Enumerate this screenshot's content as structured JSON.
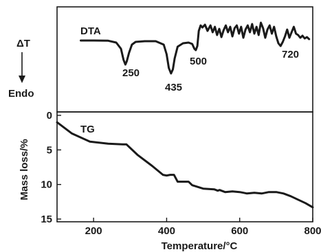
{
  "chart_data": [
    {
      "type": "line",
      "panel": "DTA",
      "curve_label": "DTA",
      "y_indicator": {
        "symbol": "ΔT",
        "direction_label": "Endo"
      },
      "peak_labels": [
        {
          "text": "250",
          "x": 290
        },
        {
          "text": "435",
          "x": 415
        },
        {
          "text": "500",
          "x": 480
        },
        {
          "text": "720",
          "x": 720
        }
      ],
      "series": [
        {
          "x": [
            165,
            200,
            240,
            262,
            275,
            282,
            287,
            291,
            297,
            305,
            315,
            340,
            370,
            392,
            400,
            406,
            412,
            417,
            422,
            430,
            445,
            460,
            470,
            476,
            480,
            484,
            488,
            493,
            498,
            505,
            512,
            520,
            526,
            532,
            538,
            544,
            550,
            556,
            562,
            568,
            574,
            580,
            586,
            592,
            598,
            604,
            610,
            616,
            622,
            628,
            634,
            640,
            646,
            652,
            658,
            664,
            670,
            676,
            682,
            688,
            694,
            700,
            706,
            712,
            718,
            724,
            730,
            736,
            742,
            748,
            754,
            760,
            766,
            772,
            778,
            784,
            790
          ],
          "y": [
            0,
            0,
            -0.3,
            -3,
            -12,
            -28,
            -35,
            -30,
            -18,
            -6,
            -2,
            -1,
            -1,
            -6,
            -20,
            -40,
            -48,
            -42,
            -26,
            -9,
            -4,
            -3,
            -5,
            -12,
            -14,
            -8,
            14,
            22,
            19,
            23,
            14,
            22,
            12,
            20,
            8,
            17,
            5,
            15,
            22,
            12,
            20,
            6,
            18,
            22,
            10,
            20,
            4,
            16,
            22,
            12,
            24,
            10,
            20,
            8,
            26,
            18,
            4,
            16,
            22,
            10,
            20,
            6,
            -4,
            -8,
            -2,
            6,
            16,
            4,
            12,
            20,
            10,
            8,
            4,
            7,
            3,
            5,
            2
          ]
        }
      ]
    },
    {
      "type": "line",
      "panel": "TG",
      "curve_label": "TG",
      "xlabel": "Temperature/°C",
      "ylabel": "Mass loss/%",
      "xlim": [
        100,
        800
      ],
      "ylim": [
        0,
        15
      ],
      "y_inverted": true,
      "x_ticks": [
        "200",
        "400",
        "600",
        "800"
      ],
      "y_ticks": [
        "0",
        "5",
        "10",
        "15"
      ],
      "series": [
        {
          "x": [
            100,
            140,
            190,
            240,
            280,
            290,
            320,
            360,
            390,
            400,
            410,
            420,
            430,
            440,
            450,
            460,
            470,
            500,
            530,
            540,
            545,
            550,
            560,
            580,
            600,
            610,
            620,
            640,
            660,
            680,
            700,
            720,
            740,
            760,
            780,
            800
          ],
          "y": [
            1.0,
            2.6,
            3.8,
            4.1,
            4.2,
            4.2,
            5.7,
            7.3,
            8.6,
            8.7,
            8.6,
            8.6,
            9.6,
            9.6,
            9.6,
            9.6,
            10.1,
            10.6,
            10.7,
            10.9,
            10.8,
            10.9,
            11.1,
            11.0,
            11.1,
            11.2,
            11.3,
            11.2,
            11.3,
            11.1,
            11.1,
            11.3,
            11.7,
            12.2,
            12.7,
            13.3
          ]
        }
      ]
    }
  ]
}
